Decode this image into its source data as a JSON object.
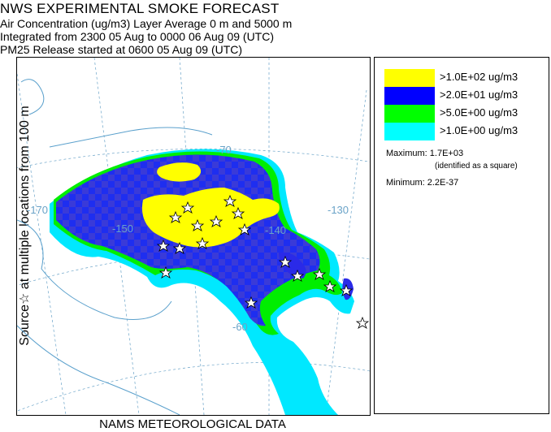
{
  "header": {
    "title": "NWS EXPERIMENTAL SMOKE FORECAST",
    "line1": "Air Concentration (ug/m3) Layer Average    0 m and  5000 m",
    "line2": "Integrated from 2300 05 Aug to 0000 06 Aug 09 (UTC)",
    "line3": "PM25 Release started at 0600 05 Aug 09 (UTC)"
  },
  "side_label": "Source☆  at multiple locations    from   100 m",
  "footer": "NAMS METEOROLOGICAL DATA",
  "map": {
    "longitude_labels": [
      "-170",
      "-150",
      "-140",
      "-130"
    ],
    "latitude_labels": [
      "-70",
      "-60"
    ]
  },
  "legend": {
    "items": [
      {
        "label": ">1.0E+02 ug/m3",
        "color": "#ffff00"
      },
      {
        "label": ">2.0E+01 ug/m3",
        "color": "#0000ff"
      },
      {
        "label": ">5.0E+00 ug/m3",
        "color": "#00ff00"
      },
      {
        "label": ">1.0E+00 ug/m3",
        "color": "#00ffff"
      }
    ],
    "maximum": "Maximum: 1.7E+03",
    "maximum_note": "(identified as a square)",
    "minimum": "Minimum: 2.2E-37"
  }
}
